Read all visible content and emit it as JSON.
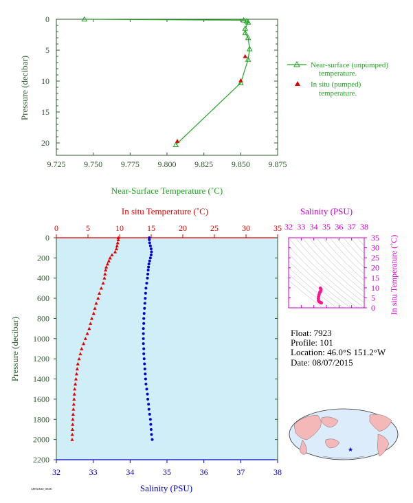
{
  "colors": {
    "green": "#22a522",
    "axis_green": "#2e5a2e",
    "red": "#e00000",
    "blue": "#0000cc",
    "magenta": "#cc00cc",
    "pink": "#ff1493",
    "plot_bg": "#cfeef8",
    "map_land": "#f4b8b8",
    "map_ocean": "#dcecfb"
  },
  "info": {
    "float": "Float:  7923",
    "profile": "Profile:  101",
    "location": "Location:  46.0°S  151.2°W",
    "date": "Date:  08/07/2015"
  },
  "footer_code": "APEX0040_00000",
  "chart_data": [
    {
      "type": "line",
      "xlabel": "Near-Surface Temperature (˚C)",
      "ylabel": "Pressure (decibar)",
      "xlim": [
        9.725,
        9.875
      ],
      "ylim": [
        22,
        0
      ],
      "xticks": [
        "9.725",
        "9.750",
        "9.775",
        "9.800",
        "9.825",
        "9.850",
        "9.875"
      ],
      "xtick_values": [
        9.725,
        9.75,
        9.775,
        9.8,
        9.825,
        9.85,
        9.875
      ],
      "yticks": [
        "0",
        "5",
        "10",
        "15",
        "20"
      ],
      "ytick_values": [
        0,
        5,
        10,
        15,
        20
      ],
      "legend_position": "right",
      "series": [
        {
          "name": "Near-surface (unpumped) temperature.",
          "legend_lines": [
            "Near-surface (unpumped)",
            "temperature."
          ],
          "marker": "triangle",
          "points": [
            [
              9.744,
              0
            ],
            [
              9.852,
              0.15
            ],
            [
              9.854,
              0.3
            ],
            [
              9.855,
              0.5
            ],
            [
              9.853,
              1.5
            ],
            [
              9.853,
              2.2
            ],
            [
              9.855,
              3
            ],
            [
              9.856,
              4.8
            ],
            [
              9.855,
              6.5
            ],
            [
              9.85,
              10.3
            ],
            [
              9.806,
              20.3
            ]
          ]
        },
        {
          "name": "In situ (pumped) temperature.",
          "legend_lines": [
            "In situ (pumped)",
            "temperature."
          ],
          "marker": "triangle-filled",
          "points": [
            [
              9.853,
              6.0
            ],
            [
              9.85,
              9.9
            ],
            [
              9.807,
              19.7
            ]
          ]
        }
      ]
    },
    {
      "type": "scatter",
      "title_top": "In situ Temperature (˚C)",
      "xlabel_bottom": "Salinity (PSU)",
      "ylabel": "Pressure (decibar)",
      "xlim_top": [
        0,
        35
      ],
      "xlim_bottom": [
        32,
        38
      ],
      "ylim": [
        2200,
        0
      ],
      "xticks_top": [
        "0",
        "5",
        "10",
        "15",
        "20",
        "25",
        "30",
        "35"
      ],
      "xticks_top_values": [
        0,
        5,
        10,
        15,
        20,
        25,
        30,
        35
      ],
      "xticks_bottom": [
        "32",
        "33",
        "34",
        "35",
        "36",
        "37",
        "38"
      ],
      "xticks_bottom_values": [
        32,
        33,
        34,
        35,
        36,
        37,
        38
      ],
      "yticks": [
        "0",
        "200",
        "400",
        "600",
        "800",
        "1000",
        "1200",
        "1400",
        "1600",
        "1800",
        "2000",
        "2200"
      ],
      "ytick_values": [
        0,
        200,
        400,
        600,
        800,
        1000,
        1200,
        1400,
        1600,
        1800,
        2000,
        2200
      ],
      "temperature_profile": [
        [
          9.8,
          0
        ],
        [
          9.8,
          20
        ],
        [
          9.7,
          50
        ],
        [
          9.6,
          80
        ],
        [
          9.5,
          110
        ],
        [
          9.3,
          140
        ],
        [
          8.8,
          170
        ],
        [
          8.5,
          200
        ],
        [
          8.3,
          230
        ],
        [
          8.1,
          260
        ],
        [
          7.9,
          290
        ],
        [
          7.8,
          320
        ],
        [
          7.7,
          360
        ],
        [
          7.6,
          400
        ],
        [
          7.4,
          450
        ],
        [
          7.1,
          500
        ],
        [
          6.8,
          550
        ],
        [
          6.6,
          600
        ],
        [
          6.3,
          650
        ],
        [
          6.1,
          700
        ],
        [
          5.9,
          750
        ],
        [
          5.6,
          800
        ],
        [
          5.4,
          850
        ],
        [
          5.2,
          900
        ],
        [
          4.9,
          950
        ],
        [
          4.6,
          1000
        ],
        [
          4.3,
          1050
        ],
        [
          4.0,
          1100
        ],
        [
          3.8,
          1150
        ],
        [
          3.6,
          1200
        ],
        [
          3.4,
          1250
        ],
        [
          3.3,
          1300
        ],
        [
          3.2,
          1350
        ],
        [
          3.1,
          1400
        ],
        [
          3.0,
          1450
        ],
        [
          2.9,
          1500
        ],
        [
          2.85,
          1550
        ],
        [
          2.8,
          1600
        ],
        [
          2.75,
          1650
        ],
        [
          2.7,
          1700
        ],
        [
          2.65,
          1750
        ],
        [
          2.6,
          1800
        ],
        [
          2.58,
          1850
        ],
        [
          2.55,
          1900
        ],
        [
          2.52,
          1950
        ],
        [
          2.5,
          2000
        ]
      ],
      "salinity_profile": [
        [
          34.52,
          0
        ],
        [
          34.52,
          20
        ],
        [
          34.53,
          50
        ],
        [
          34.55,
          80
        ],
        [
          34.57,
          110
        ],
        [
          34.58,
          140
        ],
        [
          34.57,
          170
        ],
        [
          34.55,
          200
        ],
        [
          34.53,
          230
        ],
        [
          34.51,
          260
        ],
        [
          34.5,
          290
        ],
        [
          34.49,
          320
        ],
        [
          34.48,
          360
        ],
        [
          34.47,
          400
        ],
        [
          34.45,
          450
        ],
        [
          34.43,
          500
        ],
        [
          34.42,
          550
        ],
        [
          34.41,
          600
        ],
        [
          34.4,
          650
        ],
        [
          34.39,
          700
        ],
        [
          34.38,
          750
        ],
        [
          34.37,
          800
        ],
        [
          34.37,
          850
        ],
        [
          34.36,
          900
        ],
        [
          34.36,
          950
        ],
        [
          34.36,
          1000
        ],
        [
          34.36,
          1050
        ],
        [
          34.37,
          1100
        ],
        [
          34.37,
          1150
        ],
        [
          34.38,
          1200
        ],
        [
          34.39,
          1250
        ],
        [
          34.4,
          1300
        ],
        [
          34.41,
          1350
        ],
        [
          34.42,
          1400
        ],
        [
          34.43,
          1450
        ],
        [
          34.45,
          1500
        ],
        [
          34.47,
          1550
        ],
        [
          34.48,
          1600
        ],
        [
          34.5,
          1650
        ],
        [
          34.51,
          1700
        ],
        [
          34.53,
          1750
        ],
        [
          34.55,
          1800
        ],
        [
          34.56,
          1850
        ],
        [
          34.57,
          1900
        ],
        [
          34.58,
          1950
        ],
        [
          34.6,
          2000
        ]
      ]
    },
    {
      "type": "scatter",
      "title": "Salinity (PSU)",
      "ylabel": "In situ Temperature (˚C)",
      "xlim": [
        32,
        38
      ],
      "ylim": [
        0,
        35
      ],
      "xticks": [
        "32",
        "33",
        "34",
        "35",
        "36",
        "37",
        "38"
      ],
      "xtick_values": [
        32,
        33,
        34,
        35,
        36,
        37,
        38
      ],
      "yticks": [
        "0",
        "5",
        "10",
        "15",
        "20",
        "25",
        "30",
        "35"
      ],
      "ytick_values": [
        0,
        5,
        10,
        15,
        20,
        25,
        30,
        35
      ],
      "ts_points": [
        [
          34.52,
          9.8
        ],
        [
          34.57,
          9.3
        ],
        [
          34.55,
          8.5
        ],
        [
          34.5,
          7.9
        ],
        [
          34.47,
          7.6
        ],
        [
          34.42,
          6.6
        ],
        [
          34.38,
          5.6
        ],
        [
          34.36,
          4.6
        ],
        [
          34.37,
          3.6
        ],
        [
          34.42,
          3.1
        ],
        [
          34.48,
          2.8
        ],
        [
          34.55,
          2.6
        ],
        [
          34.6,
          2.5
        ]
      ]
    }
  ]
}
